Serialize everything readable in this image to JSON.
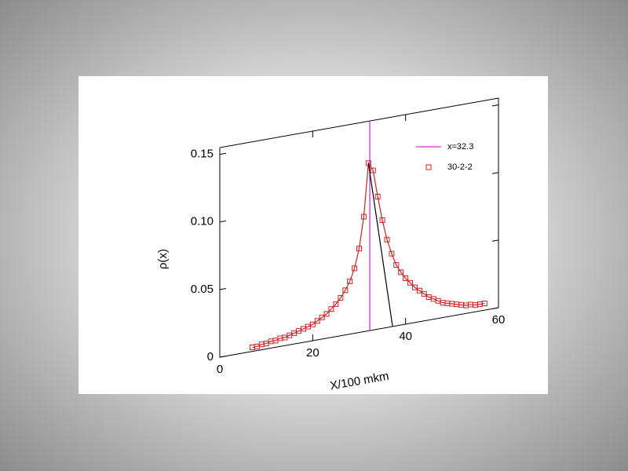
{
  "chart_data": {
    "type": "line",
    "xlabel": "X/100 mkm",
    "ylabel": "ρ(x)",
    "xlim": [
      0,
      60
    ],
    "ylim": [
      0,
      0.155
    ],
    "xticks": [
      0,
      20,
      40,
      60
    ],
    "yticks": [
      0,
      0.05,
      {
        "value": 0.1,
        "label": "0.10"
      },
      0.15
    ],
    "series": [
      {
        "name": "x=32.3",
        "type": "vline",
        "color": "#cc33cc",
        "x": 32.3
      },
      {
        "name": "30-2-2",
        "color": "#cc2222",
        "marker": "square",
        "x": [
          7,
          8,
          9,
          10,
          11,
          12,
          13,
          14,
          15,
          16,
          17,
          18,
          19,
          20,
          21,
          22,
          23,
          24,
          25,
          26,
          27,
          28,
          29,
          30,
          31,
          32,
          33,
          34,
          35,
          36,
          37,
          38,
          39,
          40,
          41,
          42,
          43,
          44,
          45,
          46,
          47,
          48,
          49,
          50,
          51,
          52,
          53,
          54,
          55,
          56,
          57
        ],
        "values": [
          0.003,
          0.003,
          0.004,
          0.004,
          0.005,
          0.005,
          0.006,
          0.006,
          0.007,
          0.008,
          0.009,
          0.01,
          0.011,
          0.012,
          0.014,
          0.016,
          0.018,
          0.021,
          0.024,
          0.028,
          0.033,
          0.039,
          0.048,
          0.062,
          0.085,
          0.124,
          0.118,
          0.098,
          0.08,
          0.065,
          0.054,
          0.045,
          0.039,
          0.034,
          0.03,
          0.026,
          0.023,
          0.02,
          0.017,
          0.015,
          0.013,
          0.011,
          0.01,
          0.009,
          0.008,
          0.007,
          0.006,
          0.006,
          0.005,
          0.005,
          0.005
        ]
      },
      {
        "color": "#000000",
        "x": [
          32,
          37.2
        ],
        "values": [
          0.124,
          0
        ]
      }
    ]
  }
}
